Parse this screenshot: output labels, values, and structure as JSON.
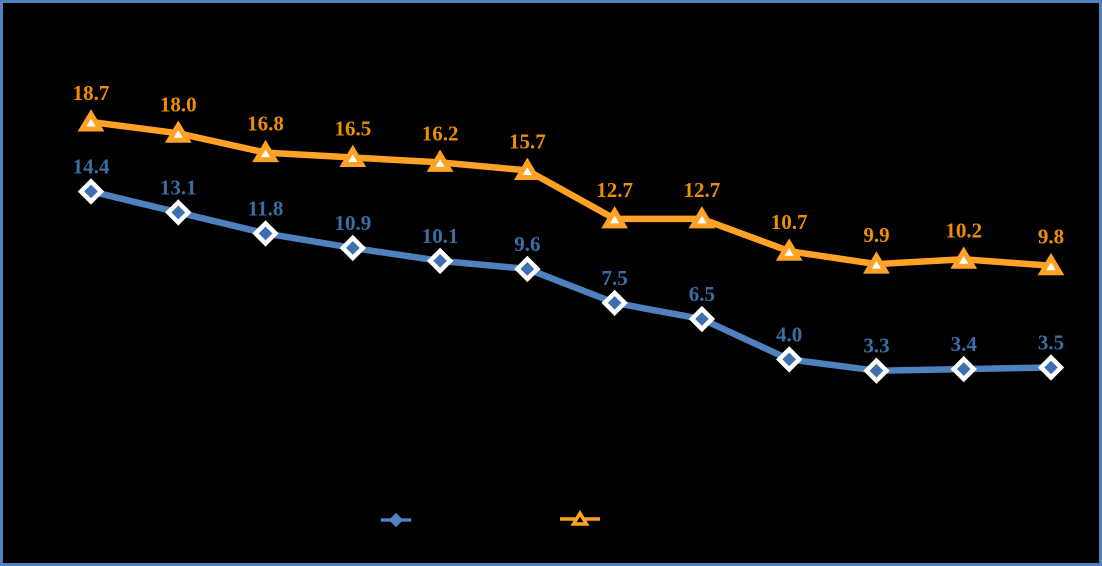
{
  "window": {
    "background_color": "#000000",
    "border_color": "#4E81BD"
  },
  "chart_data": {
    "type": "line",
    "title": "",
    "xlabel": "",
    "ylabel": "",
    "x_count": 12,
    "grid": false,
    "axes_visible": false,
    "data_labels_visible": true,
    "ylim": [
      0,
      26
    ],
    "series": [
      {
        "id": "triangle-series",
        "marker": "triangle",
        "line_color": "#FFA225",
        "marker_fill": "#FFFFFF",
        "label_color": "#EE8F00",
        "values": [
          18.7,
          18.0,
          16.8,
          16.5,
          16.2,
          15.7,
          12.7,
          12.7,
          10.7,
          9.9,
          10.2,
          9.8
        ],
        "labels": [
          "18.7",
          "18.0",
          "16.8",
          "16.5",
          "16.2",
          "15.7",
          "12.7",
          "12.7",
          "10.7",
          "9.9",
          "10.2",
          "9.8"
        ]
      },
      {
        "id": "diamond-series",
        "marker": "diamond",
        "line_color": "#4E81BD",
        "marker_fill": "#3E6FB0",
        "label_color": "#3A6EA5",
        "values": [
          14.4,
          13.1,
          11.8,
          10.9,
          10.1,
          9.6,
          7.5,
          6.5,
          4.0,
          3.3,
          3.4,
          3.5
        ],
        "labels": [
          "14.4",
          "13.1",
          "11.8",
          "10.9",
          "10.1",
          "9.6",
          "7.5",
          "6.5",
          "4.0",
          "3.3",
          "3.4",
          "3.5"
        ]
      }
    ],
    "legend": {
      "position": "bottom-center",
      "entries": [
        {
          "marker": "diamond",
          "color": "#4E81BD",
          "marker_fill": "#4E81BD"
        },
        {
          "marker": "triangle",
          "color": "#FFA225",
          "marker_fill": "#000000"
        }
      ]
    }
  }
}
